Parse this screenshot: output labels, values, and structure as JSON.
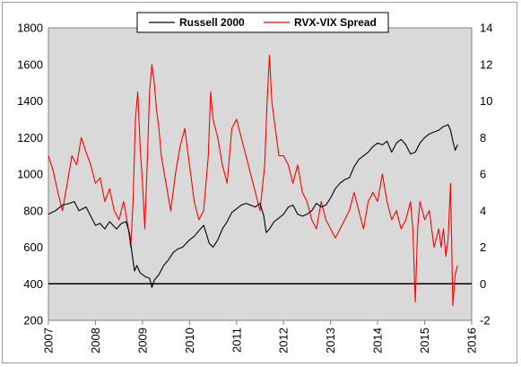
{
  "chart_data": {
    "type": "line",
    "legend_placement": "top-center",
    "grid": "none",
    "x_axis": {
      "range": [
        2007,
        2016
      ],
      "tick_labels": [
        "2007",
        "2008",
        "2009",
        "2010",
        "2011",
        "2012",
        "2013",
        "2014",
        "2015",
        "2016"
      ]
    },
    "y_left": {
      "range": [
        200,
        1800
      ],
      "tick_labels": [
        "200",
        "400",
        "600",
        "800",
        "1000",
        "1200",
        "1400",
        "1600",
        "1800"
      ]
    },
    "y_right": {
      "range": [
        -2,
        14
      ],
      "tick_labels": [
        "-2",
        "0",
        "2",
        "4",
        "6",
        "8",
        "10",
        "12",
        "14"
      ]
    },
    "reference_line": {
      "axis": "right",
      "value": 0,
      "color": "#000000"
    },
    "series": [
      {
        "name": "Russell 2000",
        "axis": "left",
        "color": "#000000",
        "x": [
          2007.0,
          2007.15,
          2007.3,
          2007.45,
          2007.55,
          2007.65,
          2007.8,
          2007.9,
          2008.0,
          2008.1,
          2008.2,
          2008.3,
          2008.45,
          2008.55,
          2008.65,
          2008.72,
          2008.78,
          2008.83,
          2008.88,
          2008.95,
          2009.05,
          2009.15,
          2009.2,
          2009.25,
          2009.35,
          2009.45,
          2009.55,
          2009.65,
          2009.75,
          2009.85,
          2010.0,
          2010.1,
          2010.2,
          2010.3,
          2010.35,
          2010.42,
          2010.5,
          2010.6,
          2010.7,
          2010.8,
          2010.9,
          2011.0,
          2011.1,
          2011.2,
          2011.3,
          2011.4,
          2011.5,
          2011.58,
          2011.63,
          2011.7,
          2011.8,
          2011.9,
          2012.0,
          2012.1,
          2012.2,
          2012.3,
          2012.4,
          2012.5,
          2012.6,
          2012.7,
          2012.8,
          2012.9,
          2013.0,
          2013.1,
          2013.2,
          2013.3,
          2013.4,
          2013.5,
          2013.6,
          2013.7,
          2013.8,
          2013.9,
          2014.0,
          2014.1,
          2014.2,
          2014.3,
          2014.4,
          2014.5,
          2014.6,
          2014.7,
          2014.8,
          2014.9,
          2015.0,
          2015.1,
          2015.2,
          2015.3,
          2015.4,
          2015.5,
          2015.55,
          2015.6,
          2015.65,
          2015.7
        ],
        "y": [
          780,
          800,
          830,
          840,
          850,
          800,
          820,
          770,
          720,
          730,
          700,
          740,
          700,
          730,
          740,
          680,
          560,
          470,
          500,
          460,
          440,
          430,
          380,
          420,
          450,
          500,
          530,
          570,
          590,
          600,
          640,
          660,
          690,
          720,
          680,
          620,
          600,
          640,
          700,
          740,
          790,
          810,
          830,
          840,
          830,
          820,
          840,
          770,
          680,
          700,
          740,
          760,
          780,
          820,
          830,
          780,
          770,
          780,
          800,
          840,
          820,
          830,
          870,
          920,
          950,
          970,
          980,
          1040,
          1080,
          1100,
          1120,
          1150,
          1170,
          1160,
          1180,
          1120,
          1170,
          1190,
          1160,
          1110,
          1120,
          1170,
          1200,
          1220,
          1230,
          1240,
          1260,
          1270,
          1240,
          1180,
          1130,
          1160
        ]
      },
      {
        "name": "RVX-VIX Spread",
        "axis": "right",
        "color": "#ff0000",
        "x": [
          2007.0,
          2007.1,
          2007.2,
          2007.3,
          2007.4,
          2007.5,
          2007.6,
          2007.7,
          2007.8,
          2007.9,
          2008.0,
          2008.1,
          2008.2,
          2008.3,
          2008.4,
          2008.5,
          2008.6,
          2008.7,
          2008.75,
          2008.8,
          2008.85,
          2008.9,
          2008.95,
          2009.0,
          2009.05,
          2009.1,
          2009.15,
          2009.2,
          2009.25,
          2009.3,
          2009.35,
          2009.4,
          2009.5,
          2009.6,
          2009.7,
          2009.8,
          2009.9,
          2010.0,
          2010.1,
          2010.2,
          2010.3,
          2010.4,
          2010.45,
          2010.5,
          2010.6,
          2010.7,
          2010.8,
          2010.9,
          2011.0,
          2011.1,
          2011.2,
          2011.3,
          2011.4,
          2011.5,
          2011.6,
          2011.65,
          2011.7,
          2011.75,
          2011.8,
          2011.9,
          2012.0,
          2012.1,
          2012.2,
          2012.3,
          2012.4,
          2012.5,
          2012.6,
          2012.7,
          2012.8,
          2012.9,
          2013.0,
          2013.1,
          2013.2,
          2013.3,
          2013.4,
          2013.5,
          2013.6,
          2013.7,
          2013.8,
          2013.9,
          2014.0,
          2014.1,
          2014.2,
          2014.3,
          2014.4,
          2014.5,
          2014.6,
          2014.7,
          2014.75,
          2014.8,
          2014.85,
          2014.9,
          2015.0,
          2015.1,
          2015.2,
          2015.3,
          2015.35,
          2015.4,
          2015.45,
          2015.5,
          2015.55,
          2015.6,
          2015.65,
          2015.7
        ],
        "y": [
          7.0,
          6.2,
          5.0,
          4.0,
          5.5,
          7.0,
          6.5,
          8.0,
          7.2,
          6.5,
          5.5,
          5.8,
          4.5,
          5.2,
          4.0,
          3.5,
          4.5,
          3.0,
          2.0,
          4.5,
          9.0,
          10.5,
          7.5,
          5.5,
          3.0,
          6.5,
          10.5,
          12.0,
          11.0,
          9.5,
          8.5,
          7.0,
          5.5,
          4.0,
          6.0,
          7.5,
          8.5,
          6.5,
          4.5,
          3.5,
          4.0,
          7.0,
          10.5,
          9.0,
          8.0,
          6.5,
          5.5,
          8.5,
          9.0,
          8.0,
          7.0,
          6.0,
          5.0,
          4.0,
          6.5,
          10.0,
          12.5,
          10.0,
          9.0,
          7.0,
          7.0,
          6.5,
          5.5,
          6.5,
          5.0,
          4.5,
          3.5,
          3.0,
          4.5,
          3.5,
          3.0,
          2.5,
          3.0,
          3.5,
          4.0,
          5.0,
          4.0,
          3.0,
          4.5,
          5.0,
          4.5,
          6.0,
          4.5,
          3.5,
          4.0,
          3.0,
          3.5,
          4.5,
          3.0,
          -1.0,
          3.0,
          4.5,
          3.5,
          4.0,
          2.0,
          3.0,
          2.0,
          3.0,
          1.5,
          2.5,
          5.5,
          -1.2,
          0.5,
          1.0
        ]
      }
    ]
  }
}
